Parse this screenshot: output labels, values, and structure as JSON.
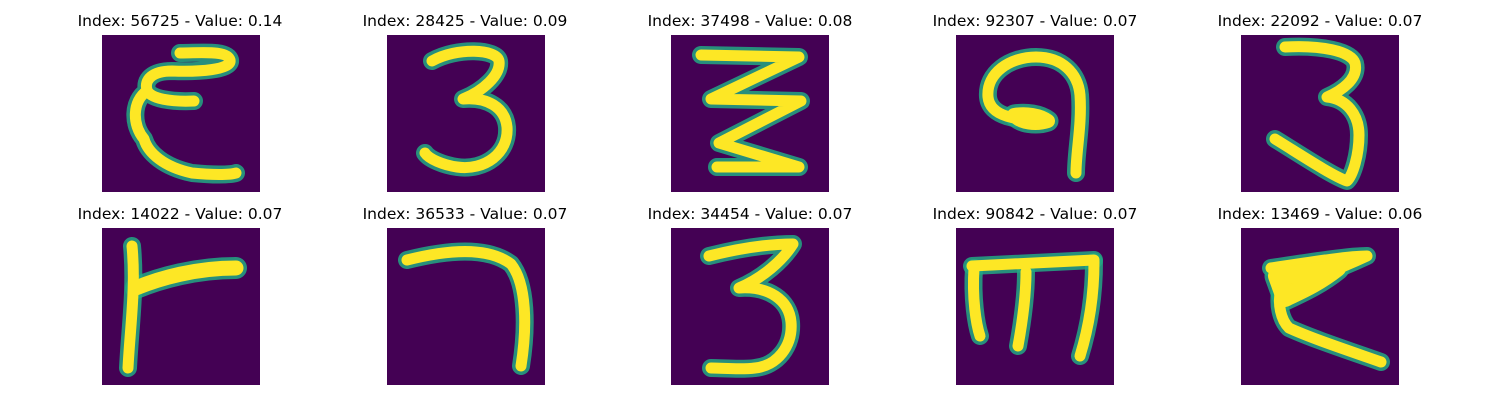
{
  "panel_background": "#440154",
  "stroke_edge_color": "#22a884",
  "stroke_core_color": "#fde725",
  "figure": {
    "rows": 2,
    "cols": 5,
    "panels": [
      {
        "index": "56725",
        "value": "0.14",
        "title": "Index: 56725 - Value: 0.14",
        "glyph_icon": "handwritten-epsilon-like-stroke"
      },
      {
        "index": "28425",
        "value": "0.09",
        "title": "Index: 28425 - Value: 0.09",
        "glyph_icon": "handwritten-three-like-stroke"
      },
      {
        "index": "37498",
        "value": "0.08",
        "title": "Index: 37498 - Value: 0.08",
        "glyph_icon": "handwritten-zigzag-stroke"
      },
      {
        "index": "92307",
        "value": "0.07",
        "title": "Index: 92307 - Value: 0.07",
        "glyph_icon": "handwritten-nine-like-stroke"
      },
      {
        "index": "22092",
        "value": "0.07",
        "title": "Index: 22092 - Value: 0.07",
        "glyph_icon": "handwritten-three-like-stroke"
      },
      {
        "index": "14022",
        "value": "0.07",
        "title": "Index: 14022 - Value: 0.07",
        "glyph_icon": "handwritten-flag-like-stroke"
      },
      {
        "index": "36533",
        "value": "0.07",
        "title": "Index: 36533 - Value: 0.07",
        "glyph_icon": "handwritten-hook-stroke"
      },
      {
        "index": "34454",
        "value": "0.07",
        "title": "Index: 34454 - Value: 0.07",
        "glyph_icon": "handwritten-three-like-stroke"
      },
      {
        "index": "90842",
        "value": "0.07",
        "title": "Index: 90842 - Value: 0.07",
        "glyph_icon": "handwritten-m-like-stroke"
      },
      {
        "index": "13469",
        "value": "0.06",
        "title": "Index: 13469 - Value: 0.06",
        "glyph_icon": "handwritten-k-like-stroke"
      }
    ]
  }
}
